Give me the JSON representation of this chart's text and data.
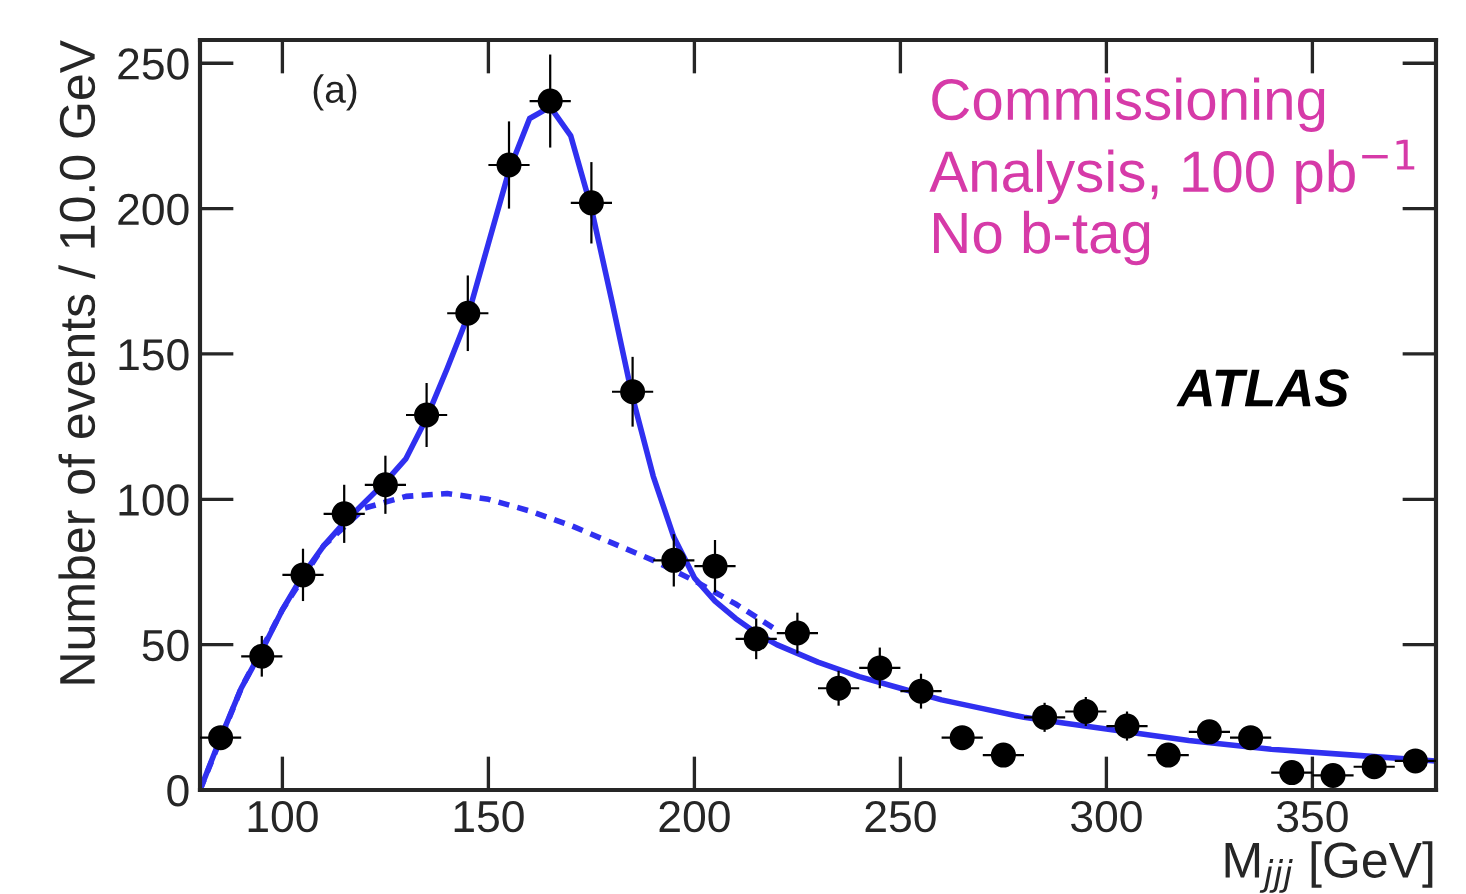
{
  "chart_data": {
    "type": "scatter",
    "xlabel": "M$_{jjj}$ [GeV]",
    "ylabel": "Number of events / 10.0 GeV",
    "xlim": [
      80,
      380
    ],
    "ylim": [
      0,
      258
    ],
    "xticks": [
      100,
      150,
      200,
      250,
      300,
      350
    ],
    "yticks": [
      0,
      50,
      100,
      150,
      200,
      250
    ],
    "grid": false,
    "marker": "circle",
    "annotations": [
      "(a)",
      "Commissioning\nAnalysis, 100 pb$^{−1}$\nNo b-tag",
      "ATLAS"
    ],
    "series": [
      {
        "color": "#000000",
        "x": [
          85,
          95,
          105,
          115,
          125,
          135,
          145,
          155,
          165,
          175,
          185,
          195,
          205,
          215,
          225,
          235,
          245,
          255,
          265,
          275,
          285,
          295,
          305,
          315,
          325,
          335,
          345,
          355,
          365,
          375
        ],
        "values": [
          18,
          46,
          74,
          95,
          105,
          129,
          164,
          215,
          237,
          202,
          137,
          79,
          77,
          52,
          54,
          35,
          42,
          34,
          18,
          12,
          25,
          27,
          22,
          12,
          20,
          18,
          6,
          5,
          8,
          10
        ],
        "errors": [
          4,
          7,
          9,
          10,
          10,
          11,
          13,
          15,
          16,
          14,
          12,
          9,
          9,
          7,
          7,
          6,
          7,
          6,
          4,
          3,
          5,
          5,
          5,
          3,
          4,
          4,
          2,
          2,
          3,
          3
        ],
        "xerrors": [
          5,
          5,
          5,
          5,
          5,
          5,
          5,
          5,
          5,
          5,
          5,
          5,
          5,
          5,
          5,
          5,
          5,
          5,
          5,
          5,
          5,
          5,
          5,
          5,
          5,
          5,
          5,
          5,
          5,
          5
        ]
      },
      {
        "type": "line",
        "marker": "none",
        "color": "#3030f0",
        "line_style": "solid",
        "x": [
          80,
          85,
          90,
          95,
          100,
          105,
          110,
          115,
          120,
          125,
          130,
          135,
          140,
          145,
          150,
          155,
          160,
          165,
          170,
          175,
          180,
          185,
          190,
          195,
          200,
          205,
          210,
          215,
          220,
          230,
          240,
          250,
          260,
          270,
          280,
          290,
          300,
          320,
          340,
          360,
          380
        ],
        "values": [
          0,
          18,
          35,
          48,
          62,
          74,
          84,
          92,
          99,
          106,
          114,
          128,
          145,
          163,
          188,
          213,
          231,
          235,
          225,
          200,
          168,
          135,
          108,
          87,
          73,
          65,
          59,
          54,
          50,
          44,
          39,
          35,
          31,
          28,
          25,
          23,
          21,
          17,
          14,
          12,
          10
        ]
      },
      {
        "type": "line",
        "marker": "none",
        "color": "#3030f0",
        "line_style": "dotted",
        "x": [
          80,
          90,
          100,
          110,
          120,
          130,
          140,
          150,
          160,
          170,
          180,
          190,
          200,
          210,
          220
        ],
        "values": [
          0,
          35,
          62,
          84,
          97,
          101,
          102,
          100,
          96,
          91,
          85,
          79,
          72,
          64,
          55
        ]
      }
    ]
  }
}
